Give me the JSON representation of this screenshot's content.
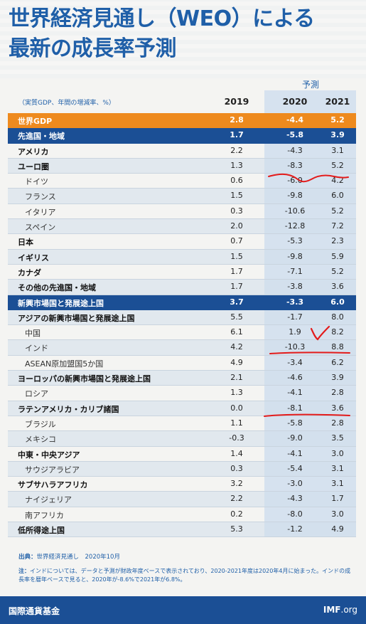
{
  "title": {
    "line1": "世界経済見通し（WEO）による",
    "line2": "最新の成長率予測"
  },
  "forecast_label": "予測",
  "table": {
    "unit_label": "（実質GDP、年間の増減率、%）",
    "years": [
      "2019",
      "2020",
      "2021"
    ],
    "rows": [
      {
        "label": "世界GDP",
        "v": [
          "2.8",
          "-4.4",
          "5.2"
        ],
        "style": "orange"
      },
      {
        "label": "先進国・地域",
        "v": [
          "1.7",
          "-5.8",
          "3.9"
        ],
        "style": "blue"
      },
      {
        "label": "アメリカ",
        "v": [
          "2.2",
          "-4.3",
          "3.1"
        ],
        "style": "bold"
      },
      {
        "label": "ユーロ圏",
        "v": [
          "1.3",
          "-8.3",
          "5.2"
        ],
        "style": "bold"
      },
      {
        "label": "ドイツ",
        "v": [
          "0.6",
          "-6.0",
          "4.2"
        ],
        "style": "sub"
      },
      {
        "label": "フランス",
        "v": [
          "1.5",
          "-9.8",
          "6.0"
        ],
        "style": "sub"
      },
      {
        "label": "イタリア",
        "v": [
          "0.3",
          "-10.6",
          "5.2"
        ],
        "style": "sub"
      },
      {
        "label": "スペイン",
        "v": [
          "2.0",
          "-12.8",
          "7.2"
        ],
        "style": "sub"
      },
      {
        "label": "日本",
        "v": [
          "0.7",
          "-5.3",
          "2.3"
        ],
        "style": "bold"
      },
      {
        "label": "イギリス",
        "v": [
          "1.5",
          "-9.8",
          "5.9"
        ],
        "style": "bold"
      },
      {
        "label": "カナダ",
        "v": [
          "1.7",
          "-7.1",
          "5.2"
        ],
        "style": "bold"
      },
      {
        "label": "その他の先進国・地域",
        "v": [
          "1.7",
          "-3.8",
          "3.6"
        ],
        "style": "bold"
      },
      {
        "label": "新興市場国と発展途上国",
        "v": [
          "3.7",
          "-3.3",
          "6.0"
        ],
        "style": "blue"
      },
      {
        "label": "アジアの新興市場国と発展途上国",
        "v": [
          "5.5",
          "-1.7",
          "8.0"
        ],
        "style": "bold"
      },
      {
        "label": "中国",
        "v": [
          "6.1",
          "1.9",
          "8.2"
        ],
        "style": "sub"
      },
      {
        "label": "インド",
        "v": [
          "4.2",
          "-10.3",
          "8.8"
        ],
        "style": "sub"
      },
      {
        "label": "ASEAN原加盟国5か国",
        "v": [
          "4.9",
          "-3.4",
          "6.2"
        ],
        "style": "sub"
      },
      {
        "label": "ヨーロッパの新興市場国と発展途上国",
        "v": [
          "2.1",
          "-4.6",
          "3.9"
        ],
        "style": "bold"
      },
      {
        "label": "ロシア",
        "v": [
          "1.3",
          "-4.1",
          "2.8"
        ],
        "style": "sub"
      },
      {
        "label": "ラテンアメリカ・カリブ諸国",
        "v": [
          "0.0",
          "-8.1",
          "3.6"
        ],
        "style": "bold"
      },
      {
        "label": "ブラジル",
        "v": [
          "1.1",
          "-5.8",
          "2.8"
        ],
        "style": "sub"
      },
      {
        "label": "メキシコ",
        "v": [
          "-0.3",
          "-9.0",
          "3.5"
        ],
        "style": "sub"
      },
      {
        "label": "中東・中央アジア",
        "v": [
          "1.4",
          "-4.1",
          "3.0"
        ],
        "style": "bold"
      },
      {
        "label": "サウジアラビア",
        "v": [
          "0.3",
          "-5.4",
          "3.1"
        ],
        "style": "sub"
      },
      {
        "label": "サブサハラアフリカ",
        "v": [
          "3.2",
          "-3.0",
          "3.1"
        ],
        "style": "bold"
      },
      {
        "label": "ナイジェリア",
        "v": [
          "2.2",
          "-4.3",
          "1.7"
        ],
        "style": "sub"
      },
      {
        "label": "南アフリカ",
        "v": [
          "0.2",
          "-8.0",
          "3.0"
        ],
        "style": "sub"
      },
      {
        "label": "低所得途上国",
        "v": [
          "5.3",
          "-1.2",
          "4.9"
        ],
        "style": "bold"
      }
    ]
  },
  "source": {
    "label": "出典：",
    "text": "世界経済見通し　2020年10月"
  },
  "note": {
    "label": "注：",
    "text": "インドについては、データと予測が財政年度ベースで表示されており、2020-2021年度は2020年4月に始まった。インドの成長率を暦年ベースで見ると、2020年が-8.6%で2021年が6.8%。"
  },
  "footer": {
    "org": "国際通貨基金",
    "site_bold": "IMF",
    "site_rest": ".org"
  },
  "colors": {
    "accent_blue": "#1b4f95",
    "title_blue": "#1f5fa8",
    "orange": "#ee8a1e",
    "annotation_red": "#e31b1b"
  }
}
